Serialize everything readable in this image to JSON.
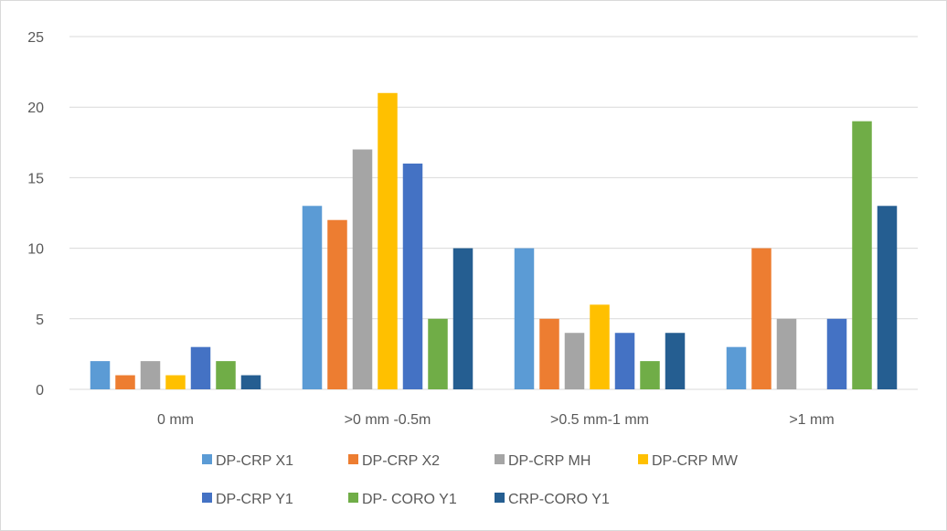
{
  "chart_data": {
    "type": "bar",
    "title": "",
    "xlabel": "",
    "ylabel": "",
    "categories": [
      "0 mm",
      ">0 mm -0.5m",
      ">0.5 mm-1 mm",
      ">1 mm"
    ],
    "ylim": [
      0,
      25
    ],
    "yticks": [
      0,
      5,
      10,
      15,
      20,
      25
    ],
    "grid": true,
    "legend_position": "bottom",
    "series": [
      {
        "name": "DP-CRP X1",
        "color": "#5B9BD5",
        "values": [
          2,
          13,
          10,
          3
        ]
      },
      {
        "name": "DP-CRP X2",
        "color": "#ED7D31",
        "values": [
          1,
          12,
          5,
          10
        ]
      },
      {
        "name": "DP-CRP MH",
        "color": "#A5A5A5",
        "values": [
          2,
          17,
          4,
          5
        ]
      },
      {
        "name": "DP-CRP MW",
        "color": "#FFC000",
        "values": [
          1,
          21,
          6,
          0
        ]
      },
      {
        "name": "DP-CRP Y1",
        "color": "#4472C4",
        "values": [
          3,
          16,
          4,
          5
        ]
      },
      {
        "name": "DP- CORO Y1",
        "color": "#70AD47",
        "values": [
          2,
          5,
          2,
          19
        ]
      },
      {
        "name": "CRP-CORO Y1",
        "color": "#255E91",
        "values": [
          1,
          10,
          4,
          13
        ]
      }
    ]
  }
}
